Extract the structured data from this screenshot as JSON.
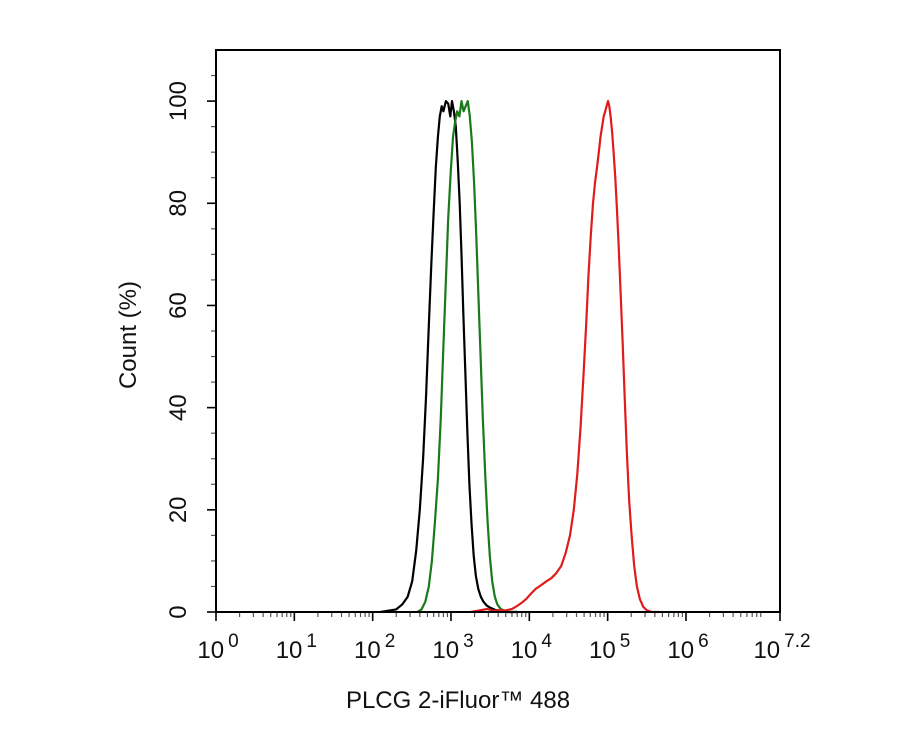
{
  "chart_data": {
    "type": "line",
    "title": "",
    "xlabel": "PLCG 2-iFluor™ 488",
    "ylabel": "Count  (%)",
    "x_scale": "log10",
    "xlim": [
      1,
      15848932
    ],
    "ylim": [
      0,
      110
    ],
    "grid": false,
    "legend": "none",
    "x_ticks": [
      {
        "base": "10",
        "exp": "0"
      },
      {
        "base": "10",
        "exp": "1"
      },
      {
        "base": "10",
        "exp": "2"
      },
      {
        "base": "10",
        "exp": "3"
      },
      {
        "base": "10",
        "exp": "4"
      },
      {
        "base": "10",
        "exp": "5"
      },
      {
        "base": "10",
        "exp": "6"
      },
      {
        "base": "10",
        "exp": "7.2"
      }
    ],
    "y_ticks": [
      "0",
      "20",
      "40",
      "60",
      "80",
      "100"
    ],
    "series": [
      {
        "color": "#000000",
        "points": [
          [
            126,
            0
          ],
          [
            200,
            0.5
          ],
          [
            240,
            1.5
          ],
          [
            280,
            3
          ],
          [
            320,
            6
          ],
          [
            360,
            12
          ],
          [
            400,
            20
          ],
          [
            440,
            30
          ],
          [
            480,
            42
          ],
          [
            520,
            56
          ],
          [
            560,
            68
          ],
          [
            600,
            78
          ],
          [
            640,
            87
          ],
          [
            680,
            93
          ],
          [
            720,
            97
          ],
          [
            760,
            99
          ],
          [
            800,
            98
          ],
          [
            860,
            100
          ],
          [
            920,
            99.5
          ],
          [
            980,
            97
          ],
          [
            1030,
            100
          ],
          [
            1090,
            98
          ],
          [
            1150,
            95
          ],
          [
            1220,
            88
          ],
          [
            1290,
            80
          ],
          [
            1360,
            70
          ],
          [
            1440,
            58
          ],
          [
            1530,
            46
          ],
          [
            1620,
            35
          ],
          [
            1720,
            25
          ],
          [
            1830,
            17
          ],
          [
            1950,
            11
          ],
          [
            2080,
            7
          ],
          [
            2230,
            4.5
          ],
          [
            2400,
            3
          ],
          [
            2600,
            2
          ],
          [
            2850,
            1.3
          ],
          [
            3200,
            0.8
          ],
          [
            3700,
            0.4
          ],
          [
            4500,
            0.2
          ],
          [
            5200,
            0
          ],
          [
            7000,
            0
          ]
        ]
      },
      {
        "color": "#1a7a1a",
        "points": [
          [
            370,
            0
          ],
          [
            420,
            0.5
          ],
          [
            470,
            2
          ],
          [
            520,
            5
          ],
          [
            570,
            10
          ],
          [
            620,
            17
          ],
          [
            680,
            26
          ],
          [
            740,
            38
          ],
          [
            800,
            52
          ],
          [
            860,
            65
          ],
          [
            920,
            77
          ],
          [
            990,
            86
          ],
          [
            1060,
            93
          ],
          [
            1130,
            96
          ],
          [
            1200,
            98
          ],
          [
            1280,
            97
          ],
          [
            1360,
            100
          ],
          [
            1450,
            98
          ],
          [
            1540,
            99
          ],
          [
            1640,
            100
          ],
          [
            1740,
            97
          ],
          [
            1850,
            92
          ],
          [
            1970,
            84
          ],
          [
            2100,
            74
          ],
          [
            2240,
            62
          ],
          [
            2390,
            50
          ],
          [
            2550,
            38
          ],
          [
            2730,
            27
          ],
          [
            2920,
            18
          ],
          [
            3130,
            11
          ],
          [
            3360,
            6
          ],
          [
            3620,
            3
          ],
          [
            3900,
            1.5
          ],
          [
            4300,
            0.6
          ],
          [
            4900,
            0.2
          ],
          [
            5600,
            0
          ],
          [
            7000,
            0
          ]
        ]
      },
      {
        "color": "#e01b1b",
        "points": [
          [
            1800,
            0
          ],
          [
            2300,
            0.3
          ],
          [
            2900,
            0.6
          ],
          [
            3500,
            0.2
          ],
          [
            4200,
            0.4
          ],
          [
            5000,
            0.3
          ],
          [
            6000,
            0.6
          ],
          [
            7000,
            1.2
          ],
          [
            8000,
            1.8
          ],
          [
            9200,
            2.6
          ],
          [
            10500,
            3.6
          ],
          [
            12000,
            4.5
          ],
          [
            14000,
            5.2
          ],
          [
            16500,
            6
          ],
          [
            19000,
            6.6
          ],
          [
            22000,
            7.6
          ],
          [
            25500,
            9
          ],
          [
            29000,
            11.5
          ],
          [
            33000,
            15
          ],
          [
            37000,
            20
          ],
          [
            41000,
            27
          ],
          [
            45000,
            36
          ],
          [
            49000,
            46
          ],
          [
            53000,
            56
          ],
          [
            57000,
            66
          ],
          [
            61000,
            74
          ],
          [
            65000,
            80
          ],
          [
            69000,
            84
          ],
          [
            73000,
            87
          ],
          [
            77000,
            90
          ],
          [
            81000,
            93
          ],
          [
            85000,
            95
          ],
          [
            89000,
            97
          ],
          [
            93000,
            98
          ],
          [
            97000,
            99
          ],
          [
            101000,
            100
          ],
          [
            105000,
            99
          ],
          [
            109000,
            97
          ],
          [
            114000,
            94
          ],
          [
            119000,
            90
          ],
          [
            125000,
            85
          ],
          [
            131000,
            79
          ],
          [
            138000,
            72
          ],
          [
            146000,
            63
          ],
          [
            155000,
            53
          ],
          [
            165000,
            42
          ],
          [
            176000,
            31
          ],
          [
            188000,
            22
          ],
          [
            202000,
            15
          ],
          [
            218000,
            9
          ],
          [
            236000,
            5
          ],
          [
            258000,
            2.5
          ],
          [
            285000,
            1
          ],
          [
            320000,
            0.3
          ],
          [
            370000,
            0
          ],
          [
            450000,
            0
          ]
        ]
      }
    ]
  }
}
